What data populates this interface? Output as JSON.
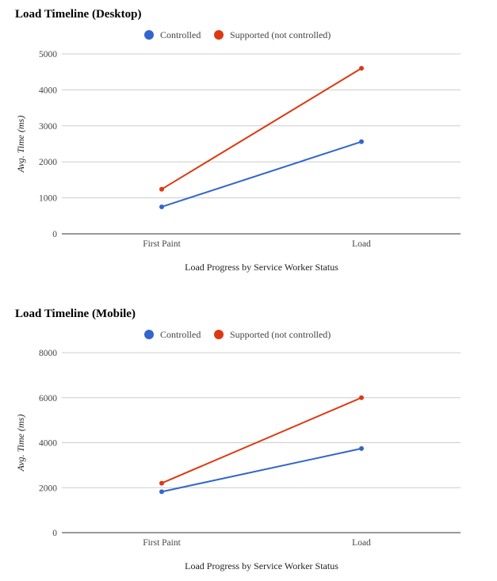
{
  "colors": {
    "controlled": "#3366cc",
    "supported": "#dc3912"
  },
  "chart_data": [
    {
      "type": "line",
      "title": "Load Timeline (Desktop)",
      "xlabel": "Load Progress by Service Worker Status",
      "ylabel": "Avg. Time (ms)",
      "categories": [
        "First Paint",
        "Load"
      ],
      "ylim": [
        0,
        5000
      ],
      "yticks": [
        0,
        1000,
        2000,
        3000,
        4000,
        5000
      ],
      "grid": true,
      "legend": "top",
      "series": [
        {
          "name": "Controlled",
          "color": "#3366cc",
          "values": [
            750,
            2560
          ]
        },
        {
          "name": "Supported (not controlled)",
          "color": "#dc3912",
          "values": [
            1240,
            4600
          ]
        }
      ]
    },
    {
      "type": "line",
      "title": "Load Timeline (Mobile)",
      "xlabel": "Load Progress by Service Worker Status",
      "ylabel": "Avg. Time (ms)",
      "categories": [
        "First Paint",
        "Load"
      ],
      "ylim": [
        0,
        8000
      ],
      "yticks": [
        0,
        2000,
        4000,
        6000,
        8000
      ],
      "grid": true,
      "legend": "top",
      "series": [
        {
          "name": "Controlled",
          "color": "#3366cc",
          "values": [
            1820,
            3740
          ]
        },
        {
          "name": "Supported (not controlled)",
          "color": "#dc3912",
          "values": [
            2200,
            6000
          ]
        }
      ]
    }
  ]
}
